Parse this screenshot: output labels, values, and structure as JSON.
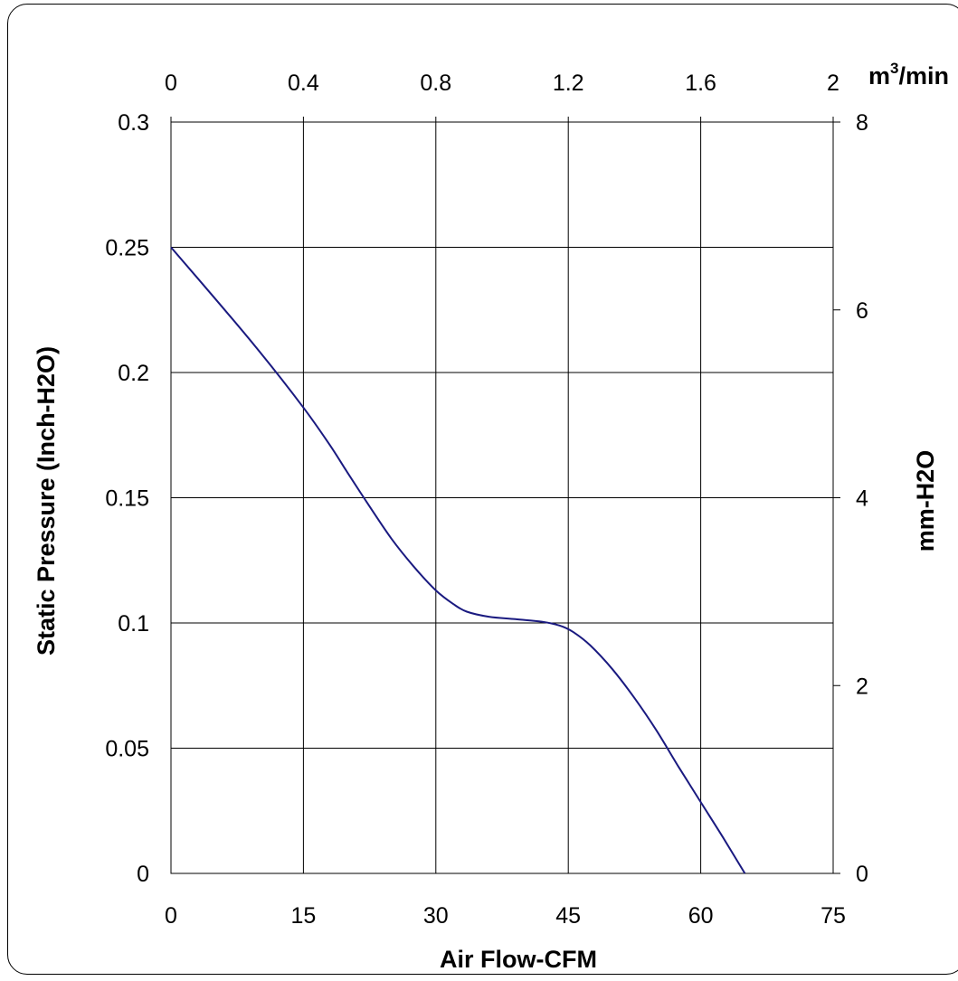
{
  "chart_data": {
    "type": "line",
    "title": "",
    "xlabel": "Air Flow-CFM",
    "ylabel": "Static Pressure (Inch-H2O)",
    "x2label_base": "m",
    "x2label_sup": "3",
    "x2label_rest": "/min",
    "y2label": "mm-H2O",
    "xlim": [
      0,
      75
    ],
    "ylim": [
      0,
      0.3
    ],
    "x2lim": [
      0,
      2
    ],
    "y2lim": [
      0,
      8
    ],
    "x_ticks": [
      "0",
      "15",
      "30",
      "45",
      "60",
      "75"
    ],
    "y_ticks": [
      "0",
      "0.05",
      "0.1",
      "0.15",
      "0.2",
      "0.25",
      "0.3"
    ],
    "x2_ticks": [
      "0",
      "0.4",
      "0.8",
      "1.2",
      "1.6",
      "2"
    ],
    "y2_ticks": [
      "0",
      "2",
      "4",
      "6",
      "8"
    ],
    "grid": true,
    "line_color": "#1a1a80",
    "series": [
      {
        "x": [
          0,
          5,
          10,
          15,
          18,
          20,
          22.5,
          25,
          27.5,
          30,
          32,
          33.5,
          36,
          39,
          42,
          44,
          45.5,
          47.5,
          50,
          52.5,
          55,
          57.5,
          60,
          62.5,
          65
        ],
        "y": [
          0.25,
          0.2295,
          0.2085,
          0.186,
          0.171,
          0.16,
          0.1465,
          0.1335,
          0.1225,
          0.113,
          0.1075,
          0.1045,
          0.1025,
          0.1015,
          0.1005,
          0.099,
          0.0965,
          0.091,
          0.0815,
          0.07,
          0.057,
          0.0425,
          0.0285,
          0.0145,
          0.0
        ]
      }
    ]
  }
}
